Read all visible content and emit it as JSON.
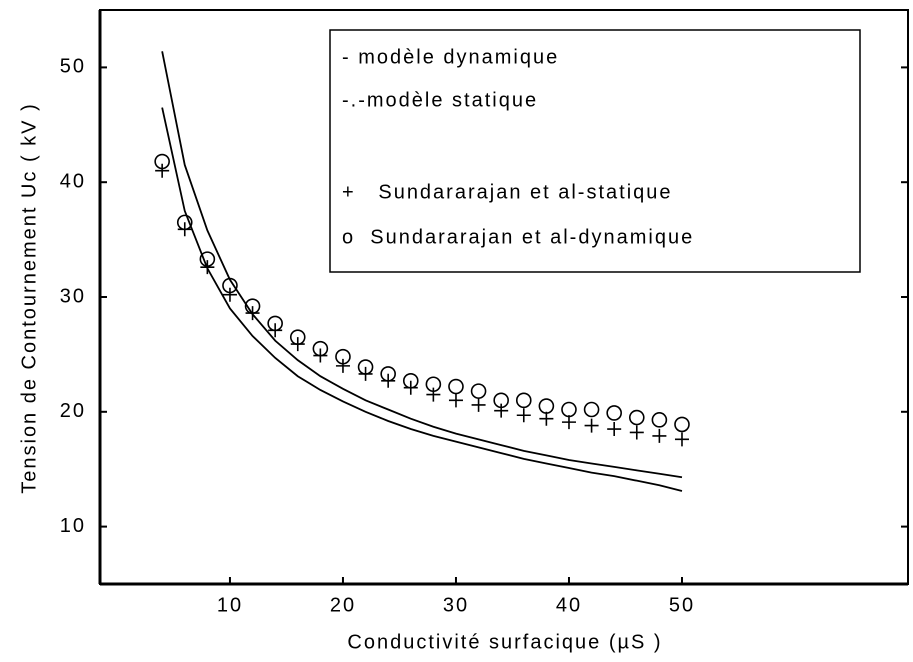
{
  "chart_data": {
    "type": "line",
    "x_label": "Conductivité surfacique (µS )",
    "y_label": "Tension de Contournement Uc ( kV )",
    "x": [
      4,
      6,
      8,
      10,
      12,
      14,
      16,
      18,
      20,
      22,
      24,
      26,
      28,
      30,
      32,
      34,
      36,
      38,
      40,
      42,
      44,
      46,
      48,
      50
    ],
    "series": [
      {
        "name": "- modèle dynamique",
        "style": "line",
        "color": "#000000",
        "values": [
          51.4,
          41.5,
          35.8,
          31.5,
          28.5,
          26.2,
          24.5,
          23.1,
          22,
          21,
          20.2,
          19.4,
          18.7,
          18.1,
          17.6,
          17.1,
          16.6,
          16.2,
          15.8,
          15.5,
          15.2,
          14.9,
          14.6,
          14.3
        ]
      },
      {
        "name": "-.-modèle statique",
        "style": "line",
        "color": "#000000",
        "values": [
          46.5,
          37.5,
          32.5,
          29,
          26.6,
          24.7,
          23.1,
          21.9,
          20.9,
          20,
          19.2,
          18.5,
          17.9,
          17.4,
          16.9,
          16.4,
          15.9,
          15.5,
          15.1,
          14.7,
          14.4,
          14.0,
          13.6,
          13.1
        ]
      },
      {
        "name": "+   Sundararajan et al-statique",
        "style": "plus",
        "color": "#000000",
        "values": [
          41,
          35.9,
          32.6,
          30.2,
          28.6,
          27.1,
          25.9,
          24.9,
          24,
          23.3,
          22.7,
          22.1,
          21.5,
          21,
          20.6,
          20.1,
          19.7,
          19.4,
          19.1,
          18.8,
          18.5,
          18.2,
          17.9,
          17.6
        ]
      },
      {
        "name": "o  Sundararajan et al-dynamique",
        "style": "circle",
        "color": "#000000",
        "values": [
          41.8,
          36.5,
          33.3,
          31,
          29.2,
          27.7,
          26.5,
          25.5,
          24.8,
          23.9,
          23.3,
          22.7,
          22.4,
          22.2,
          21.8,
          21,
          21,
          20.5,
          20.2,
          20.2,
          19.9,
          19.5,
          19.3,
          18.9
        ]
      }
    ],
    "xlim": [
      -1.5,
      70
    ],
    "xticks": [
      10,
      20,
      30,
      40,
      50
    ],
    "ylim": [
      5,
      55
    ],
    "yticks": [
      10,
      20,
      30,
      40,
      50
    ]
  }
}
